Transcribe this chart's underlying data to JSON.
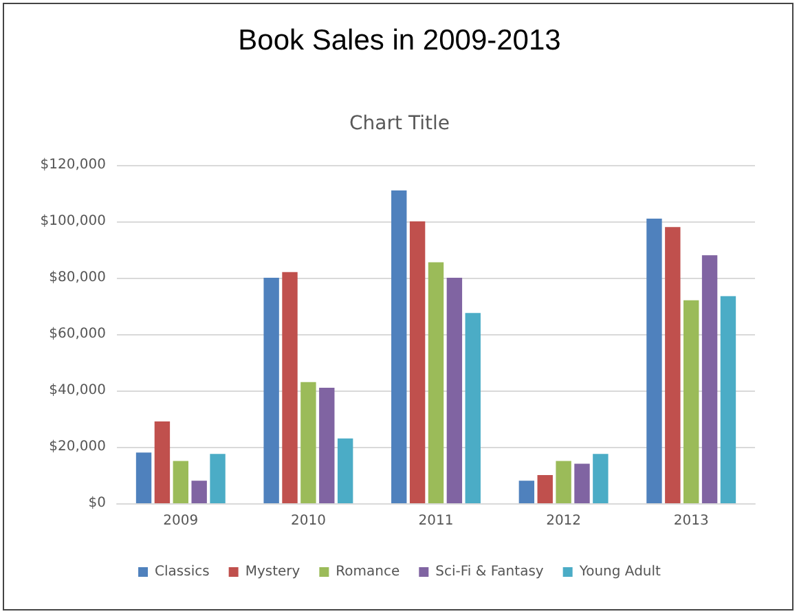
{
  "chart_data": {
    "type": "bar",
    "title": "Book Sales in 2009-2013",
    "subtitle": "Chart Title",
    "categories": [
      "2009",
      "2010",
      "2011",
      "2012",
      "2013"
    ],
    "series": [
      {
        "name": "Classics",
        "color": "#4f81bd",
        "values": [
          18000,
          80000,
          111000,
          8000,
          101000
        ]
      },
      {
        "name": "Mystery",
        "color": "#c0504d",
        "values": [
          29000,
          82000,
          100000,
          10000,
          98000
        ]
      },
      {
        "name": "Romance",
        "color": "#9bbb59",
        "values": [
          15000,
          43000,
          85500,
          15000,
          72000
        ]
      },
      {
        "name": "Sci-Fi & Fantasy",
        "color": "#8064a2",
        "values": [
          8000,
          41000,
          80000,
          14000,
          88000
        ]
      },
      {
        "name": "Young Adult",
        "color": "#4bacc6",
        "values": [
          17500,
          23000,
          67500,
          17500,
          73500
        ]
      }
    ],
    "ylim": [
      0,
      120000
    ],
    "yticks": [
      {
        "value": 0,
        "label": "$0"
      },
      {
        "value": 20000,
        "label": "$20,000"
      },
      {
        "value": 40000,
        "label": "$40,000"
      },
      {
        "value": 60000,
        "label": "$60,000"
      },
      {
        "value": 80000,
        "label": "$80,000"
      },
      {
        "value": 100000,
        "label": "$100,000"
      },
      {
        "value": 120000,
        "label": "$120,000"
      }
    ],
    "grid": "y",
    "legend": "bottom"
  }
}
